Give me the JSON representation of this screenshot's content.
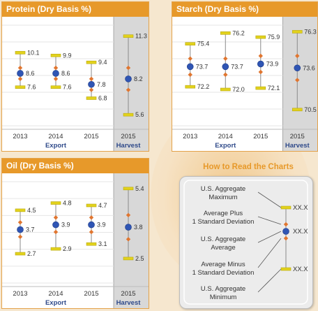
{
  "colors": {
    "header": "#e7992a",
    "mean_dot": "#2f55b4",
    "sd_diamond": "#e0752f",
    "minmax_bar": "#e2d21c",
    "range_line": "#8a8a8a",
    "harvest_bg": "#d8d8d8",
    "label_blue": "#2f4a8a"
  },
  "chart_data": [
    {
      "type": "range",
      "title": "Protein (Dry Basis %)",
      "categories": [
        "2013",
        "2014",
        "2015",
        "2015"
      ],
      "group_labels": [
        "Export",
        "Harvest"
      ],
      "ylim": [
        5.0,
        12.3
      ],
      "points": [
        {
          "max": 10.1,
          "mean": 8.6,
          "sd": 0.4,
          "min": 7.6
        },
        {
          "max": 9.9,
          "mean": 8.6,
          "sd": 0.4,
          "min": 7.6
        },
        {
          "max": 9.4,
          "mean": 7.8,
          "sd": 0.4,
          "min": 6.8
        },
        {
          "max": 11.3,
          "mean": 8.2,
          "sd": 0.8,
          "min": 5.6
        }
      ]
    },
    {
      "type": "range",
      "title": "Starch (Dry Basis %)",
      "categories": [
        "2013",
        "2014",
        "2015",
        "2015"
      ],
      "group_labels": [
        "Export",
        "Harvest"
      ],
      "ylim": [
        69.5,
        77.0
      ],
      "points": [
        {
          "max": 75.4,
          "mean": 73.7,
          "sd": 0.6,
          "min": 72.2
        },
        {
          "max": 76.2,
          "mean": 73.7,
          "sd": 0.6,
          "min": 72.0
        },
        {
          "max": 75.9,
          "mean": 73.9,
          "sd": 0.6,
          "min": 72.1
        },
        {
          "max": 76.3,
          "mean": 73.6,
          "sd": 0.9,
          "min": 70.5
        }
      ]
    },
    {
      "type": "range",
      "title": "Oil (Dry Basis %)",
      "categories": [
        "2013",
        "2014",
        "2015",
        "2015"
      ],
      "group_labels": [
        "Export",
        "Harvest"
      ],
      "ylim": [
        1.6,
        5.8
      ],
      "points": [
        {
          "max": 4.5,
          "mean": 3.7,
          "sd": 0.3,
          "min": 2.7
        },
        {
          "max": 4.8,
          "mean": 3.9,
          "sd": 0.3,
          "min": 2.9
        },
        {
          "max": 4.7,
          "mean": 3.9,
          "sd": 0.3,
          "min": 3.1
        },
        {
          "max": 5.4,
          "mean": 3.8,
          "sd": 0.5,
          "min": 2.5
        }
      ]
    }
  ],
  "legend": {
    "title": "How to Read the Charts",
    "items": [
      {
        "line1": "U.S. Aggregate",
        "line2": "Maximum",
        "value": "XX.X"
      },
      {
        "line1": "Average Plus",
        "line2": "1 Standard Deviation",
        "value": ""
      },
      {
        "line1": "U.S. Aggregate",
        "line2": "Average",
        "value": "XX.X"
      },
      {
        "line1": "Average Minus",
        "line2": "1 Standard Deviation",
        "value": ""
      },
      {
        "line1": "U.S. Aggregate",
        "line2": "Minimum",
        "value": "XX.X"
      }
    ]
  }
}
